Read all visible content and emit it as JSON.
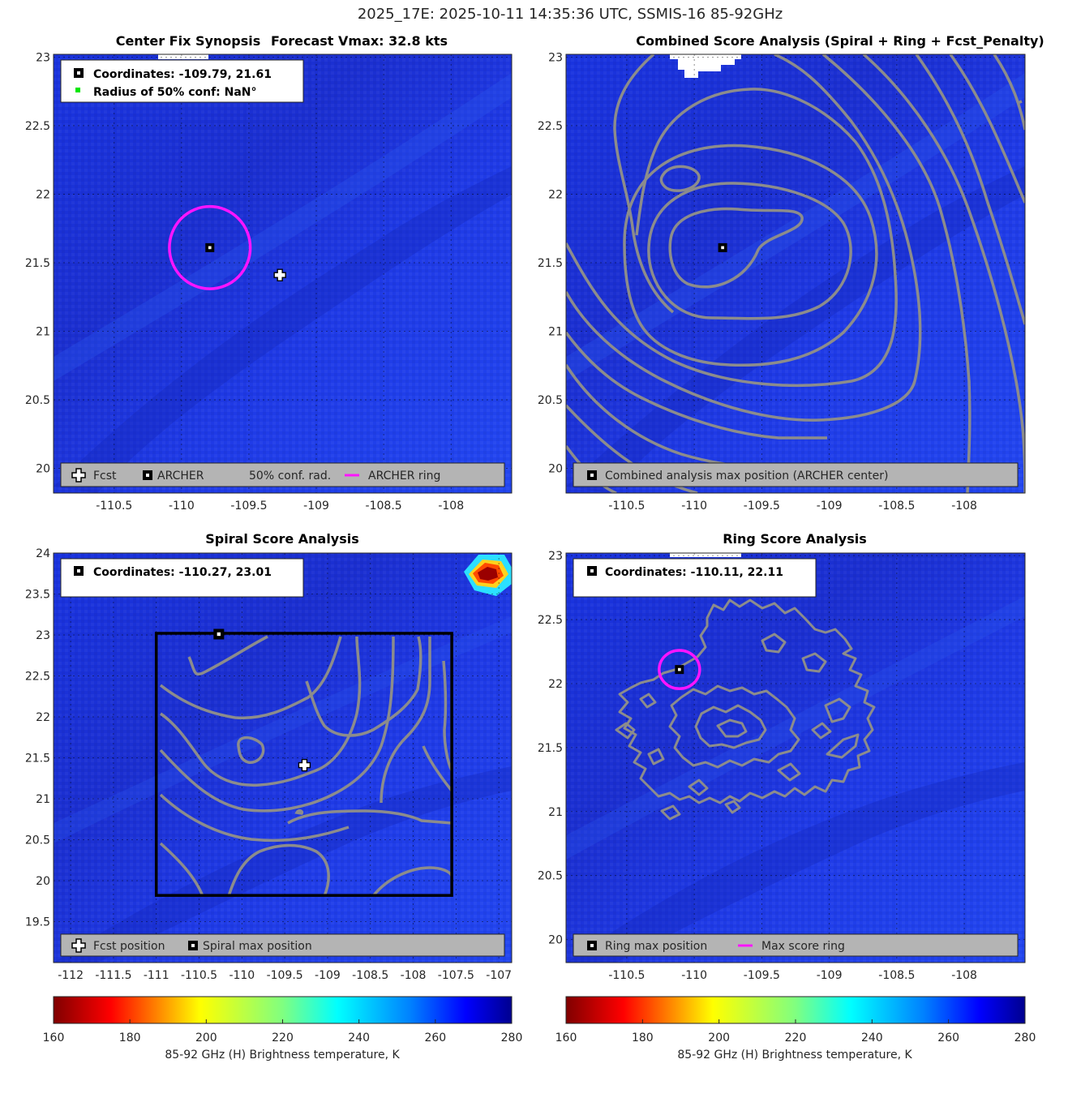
{
  "figure": {
    "suptitle": "2025_17E: 2025-10-11 14:35:36 UTC, SSMIS-16 85-92GHz"
  },
  "colors": {
    "background_field": "#1f3de6",
    "contour": "#8c8c8c",
    "ring": "#ff14ff",
    "legend_bg": "#b4b4b4",
    "box": "#000000"
  },
  "icons": {
    "fcst_marker": "white-plus-icon",
    "archer_marker": "black-square-dot-icon",
    "conf_marker": "green-dot-icon",
    "ring_marker": "magenta-line-icon"
  },
  "panels": {
    "synopsis": {
      "title_left": "Center Fix Synopsis",
      "title_right": "Forecast Vmax: 32.8 kts",
      "info_line1": "Coordinates: -109.79, 21.61",
      "info_line2": "Radius of 50% conf: NaN°",
      "legend": [
        "Fcst",
        "ARCHER",
        "50% conf. rad.",
        "ARCHER ring"
      ]
    },
    "combined": {
      "title": "Combined Score Analysis (Spiral + Ring + Fcst_Penalty)",
      "legend": [
        "Combined analysis max position (ARCHER center)"
      ]
    },
    "spiral": {
      "title": "Spiral Score Analysis",
      "info_line1": "Coordinates: -110.27, 23.01",
      "legend": [
        "Fcst position",
        "Spiral max position"
      ]
    },
    "ring": {
      "title": "Ring Score Analysis",
      "info_line1": "Coordinates: -110.11, 22.11",
      "legend": [
        "Ring max position",
        "Max score ring"
      ]
    }
  },
  "colorbars": [
    {
      "label": "85-92 GHz (H) Brightness temperature, K",
      "ticks": [
        "160",
        "180",
        "200",
        "220",
        "240",
        "260",
        "280"
      ]
    },
    {
      "label": "85-92 GHz (H) Brightness temperature, K",
      "ticks": [
        "160",
        "180",
        "200",
        "220",
        "240",
        "260",
        "280"
      ]
    }
  ],
  "chart_data": [
    {
      "type": "heatmap",
      "name": "synopsis",
      "title": "Center Fix Synopsis     Forecast Vmax: 32.8 kts",
      "xlim": [
        -110.95,
        -107.55
      ],
      "ylim": [
        19.82,
        23.02
      ],
      "xticks": [
        -110.5,
        -110,
        -109.5,
        -109,
        -108.5,
        -108
      ],
      "yticks": [
        20,
        20.5,
        21,
        21.5,
        22,
        22.5,
        23
      ],
      "archer_center": [
        -109.79,
        21.61
      ],
      "fcst_position": [
        -109.27,
        21.41
      ],
      "archer_ring_radius_deg": 0.3,
      "colorbar_range": [
        160,
        280
      ]
    },
    {
      "type": "heatmap",
      "name": "combined",
      "title": "Combined Score Analysis (Spiral + Ring + Fcst_Penalty)",
      "xlim": [
        -110.95,
        -107.55
      ],
      "ylim": [
        19.82,
        23.02
      ],
      "xticks": [
        -110.5,
        -110,
        -109.5,
        -109,
        -108.5,
        -108
      ],
      "yticks": [
        20,
        20.5,
        21,
        21.5,
        22,
        22.5,
        23
      ],
      "max_position": [
        -109.79,
        21.61
      ],
      "colorbar_range": [
        160,
        280
      ]
    },
    {
      "type": "heatmap",
      "name": "spiral",
      "title": "Spiral Score Analysis",
      "xlim": [
        -112.2,
        -106.85
      ],
      "ylim": [
        19.0,
        24.0
      ],
      "xticks": [
        -112,
        -111.5,
        -111,
        -110.5,
        -110,
        -109.5,
        -109,
        -108.5,
        -108,
        -107.5,
        -107
      ],
      "yticks": [
        19.5,
        20,
        20.5,
        21,
        21.5,
        22,
        22.5,
        23,
        23.5,
        24
      ],
      "fcst_position": [
        -109.27,
        21.41
      ],
      "spiral_max_position": [
        -110.27,
        23.01
      ],
      "search_box": {
        "lon": [
          -111.0,
          -107.55
        ],
        "lat": [
          19.82,
          23.02
        ]
      },
      "colorbar_range": [
        160,
        280
      ]
    },
    {
      "type": "heatmap",
      "name": "ring",
      "title": "Ring Score Analysis",
      "xlim": [
        -110.95,
        -107.55
      ],
      "ylim": [
        19.82,
        23.02
      ],
      "xticks": [
        -110.5,
        -110,
        -109.5,
        -109,
        -108.5,
        -108
      ],
      "yticks": [
        20,
        20.5,
        21,
        21.5,
        22,
        22.5,
        23
      ],
      "ring_max_position": [
        -110.11,
        22.11
      ],
      "max_score_ring_radius_deg": 0.15,
      "colorbar_range": [
        160,
        280
      ]
    }
  ]
}
